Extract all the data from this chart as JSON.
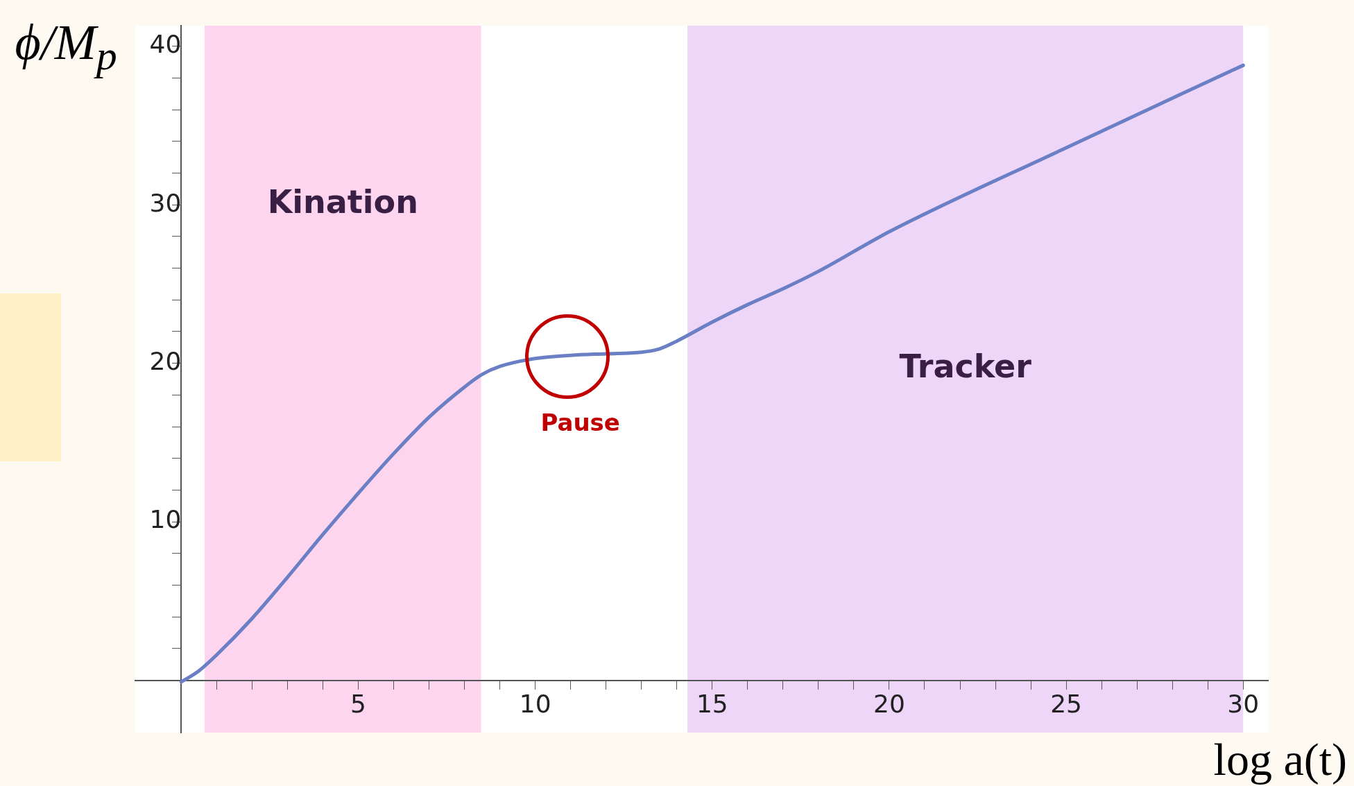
{
  "chart_data": {
    "type": "line",
    "xlabel": "log a(t)",
    "ylabel": "ϕ/M$_{p}$",
    "x": [
      0,
      0.5,
      1,
      2,
      3,
      4,
      5,
      6,
      7,
      8,
      8.5,
      9,
      10,
      11,
      12,
      13,
      13.5,
      14,
      15,
      16,
      17,
      18,
      20,
      25,
      30
    ],
    "series": [
      {
        "color": "#6b7fc4",
        "values": [
          -0.1,
          0.6,
          1.6,
          3.9,
          6.5,
          9.2,
          11.8,
          14.3,
          16.6,
          18.5,
          19.3,
          19.8,
          20.3,
          20.5,
          20.6,
          20.7,
          20.9,
          21.4,
          22.6,
          23.7,
          24.7,
          25.8,
          28.3,
          33.6,
          38.8
        ]
      }
    ],
    "xlim": [
      -1.3,
      30.7
    ],
    "ylim": [
      -3.3,
      41.3
    ],
    "xticks": [
      {
        "value": 1,
        "label": null
      },
      {
        "value": 2,
        "label": null
      },
      {
        "value": 3,
        "label": null
      },
      {
        "value": 4,
        "label": null
      },
      5,
      {
        "value": 6,
        "label": null
      },
      {
        "value": 7,
        "label": null
      },
      {
        "value": 8,
        "label": null
      },
      {
        "value": 9,
        "label": null
      },
      10,
      {
        "value": 11,
        "label": null
      },
      {
        "value": 12,
        "label": null
      },
      {
        "value": 13,
        "label": null
      },
      {
        "value": 14,
        "label": null
      },
      15,
      {
        "value": 16,
        "label": null
      },
      {
        "value": 17,
        "label": null
      },
      {
        "value": 18,
        "label": null
      },
      {
        "value": 19,
        "label": null
      },
      20,
      {
        "value": 21,
        "label": null
      },
      {
        "value": 22,
        "label": null
      },
      {
        "value": 23,
        "label": null
      },
      {
        "value": 24,
        "label": null
      },
      25,
      {
        "value": 26,
        "label": null
      },
      {
        "value": 27,
        "label": null
      },
      {
        "value": 28,
        "label": null
      },
      {
        "value": 29,
        "label": null
      },
      30
    ],
    "yticks": [
      {
        "value": 2,
        "label": null
      },
      {
        "value": 4,
        "label": null
      },
      {
        "value": 6,
        "label": null
      },
      {
        "value": 8,
        "label": null
      },
      10,
      {
        "value": 12,
        "label": null
      },
      {
        "value": 14,
        "label": null
      },
      {
        "value": 16,
        "label": null
      },
      {
        "value": 18,
        "label": null
      },
      20,
      {
        "value": 22,
        "label": null
      },
      {
        "value": 24,
        "label": null
      },
      {
        "value": 26,
        "label": null
      },
      {
        "value": 28,
        "label": null
      },
      30,
      {
        "value": 32,
        "label": null
      },
      {
        "value": 34,
        "label": null
      },
      {
        "value": 36,
        "label": null
      },
      {
        "value": 38,
        "label": null
      },
      40
    ],
    "bands": [
      {
        "axis": "x",
        "from": 0.66,
        "to": 8.47,
        "color": "#fdd5ef",
        "label": "Kination"
      },
      {
        "axis": "x",
        "from": 14.3,
        "to": 30,
        "color": "#eed6f8",
        "label": "Tracker"
      }
    ],
    "annotations": [
      {
        "text": "Pause",
        "x": 11,
        "y": 20.5
      }
    ],
    "grid": false,
    "legend": false,
    "marker": "none",
    "line_style": "solid"
  }
}
